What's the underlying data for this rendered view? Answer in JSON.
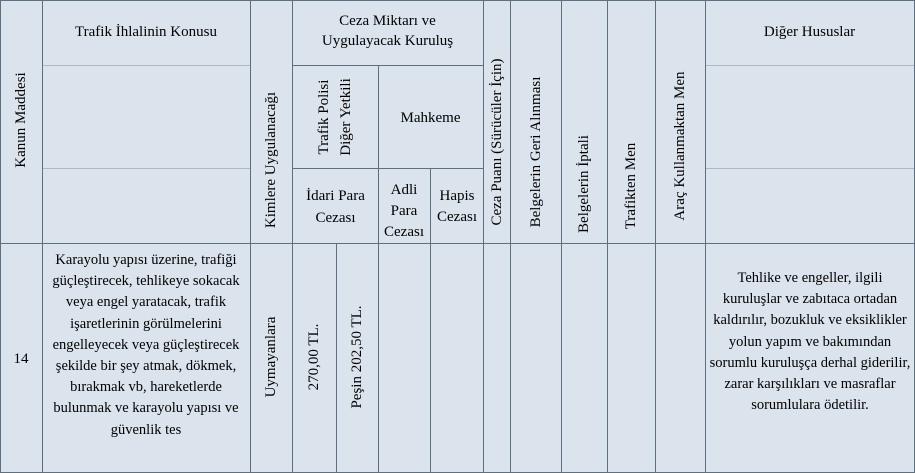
{
  "headers": {
    "kanun_maddesi": "Kanun Maddesi",
    "trafik_ihlali_konusu": "Trafik İhlalinin Konusu",
    "kimlere_uygulanacagi": "Kimlere Uygulanacağı",
    "ceza_miktari": "Ceza Miktarı ve Uygulayacak Kuruluş",
    "trafik_polisi": "Trafik Polisi\nDiğer Yetkili",
    "mahkeme": "Mahkeme",
    "idari_para_cezasi": "İdari Para Cezası",
    "adli_para_cezasi": "Adli Para Cezası",
    "hapis_cezasi": "Hapis Cezası",
    "ceza_puani": "Ceza Puanı (Sürücüler İçin)",
    "belgelerin_geri_alinmasi": "Belgelerin Geri Alınması",
    "belgelerin_iptali": "Belgelerin İptali",
    "trafikten_men": "Trafikten Men",
    "arac_kullanmaktan_men": "Araç Kullanmaktan Men",
    "diger_hususlar": "Diğer Hususlar"
  },
  "row": {
    "madde": "14",
    "konu": "Karayolu yapısı üzerine, trafiği güçleştirecek, tehlikeye sokacak veya engel yaratacak, trafik işaretlerinin görülmelerini engelleyecek veya güçleştirecek şekilde bir şey atmak, dökmek, bırakmak vb, hareketlerde bulunmak ve karayolu yapısı ve güvenlik tes",
    "kimlere": "Uymayanlara",
    "idari_ceza": "270,00 TL.",
    "pesin": "Peşin 202,50 TL.",
    "adli_ceza": "",
    "hapis": "",
    "ceza_puani": "",
    "geri_alinma": "",
    "iptal": "",
    "trafikten_men": "",
    "arac_men": "",
    "diger": "Tehlike ve engeller, ilgili kuruluşlar ve zabıtaca ortadan kaldırılır, bozukluk ve eksiklikler yolun yapım ve bakımından sorumlu kuruluşça derhal giderilir, zarar karşılıkları ve masraflar sorumlulara ödetilir."
  }
}
